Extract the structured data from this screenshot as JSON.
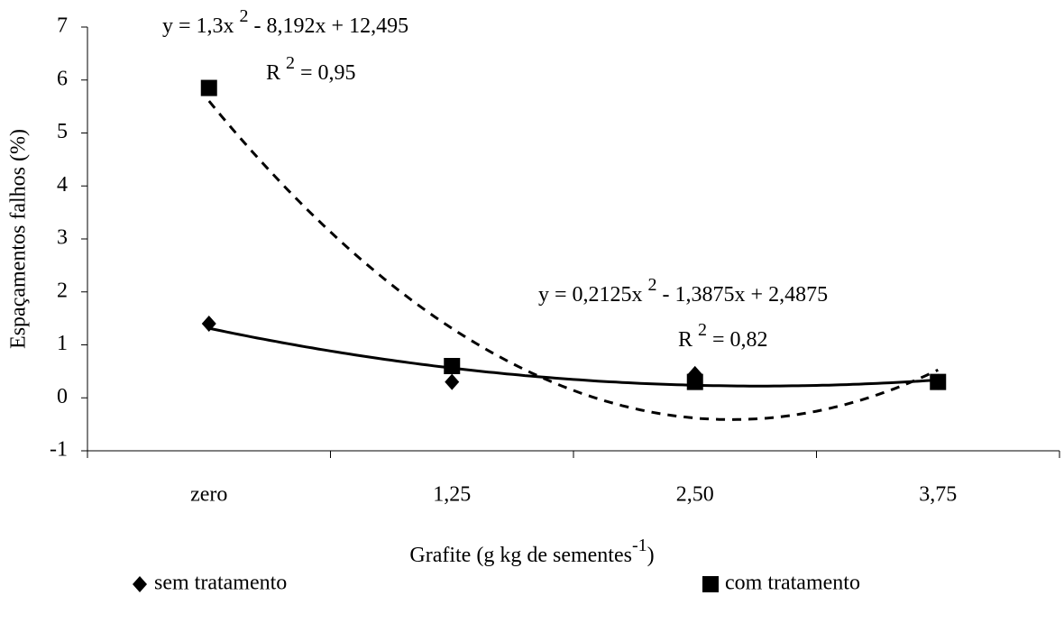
{
  "chart_data": {
    "type": "scatter",
    "categories": [
      "zero",
      "1,25",
      "2,50",
      "3,75"
    ],
    "y_label": "Espaçamentos falhos (%)",
    "x_label": [
      "Grafite (g kg de sementes",
      "-1",
      ")"
    ],
    "ylim": [
      -1,
      7
    ],
    "yticks": [
      -1,
      0,
      1,
      2,
      3,
      4,
      5,
      6,
      7
    ],
    "series": [
      {
        "name": "sem tratamento",
        "color": "#000000",
        "marker": "diamond",
        "values": [
          1.4,
          0.3,
          0.45,
          0.3
        ],
        "trend": {
          "coefficients": [
            0.2125,
            -1.3875,
            2.4875
          ],
          "style": "solid",
          "equation": [
            "y = 0,2125x ",
            "2",
            " - 1,3875x + 2,4875"
          ],
          "r2": [
            "R ",
            "2",
            " = 0,82"
          ]
        }
      },
      {
        "name": "com tratamento",
        "color": "#000000",
        "marker": "square",
        "values": [
          5.85,
          0.6,
          0.3,
          0.3
        ],
        "trend": {
          "coefficients": [
            1.3,
            -8.192,
            12.495
          ],
          "style": "dashed",
          "equation": [
            "y = 1,3x ",
            "2",
            " - 8,192x + 12,495"
          ],
          "r2": [
            "R ",
            "2",
            " = 0,95"
          ]
        }
      }
    ]
  }
}
